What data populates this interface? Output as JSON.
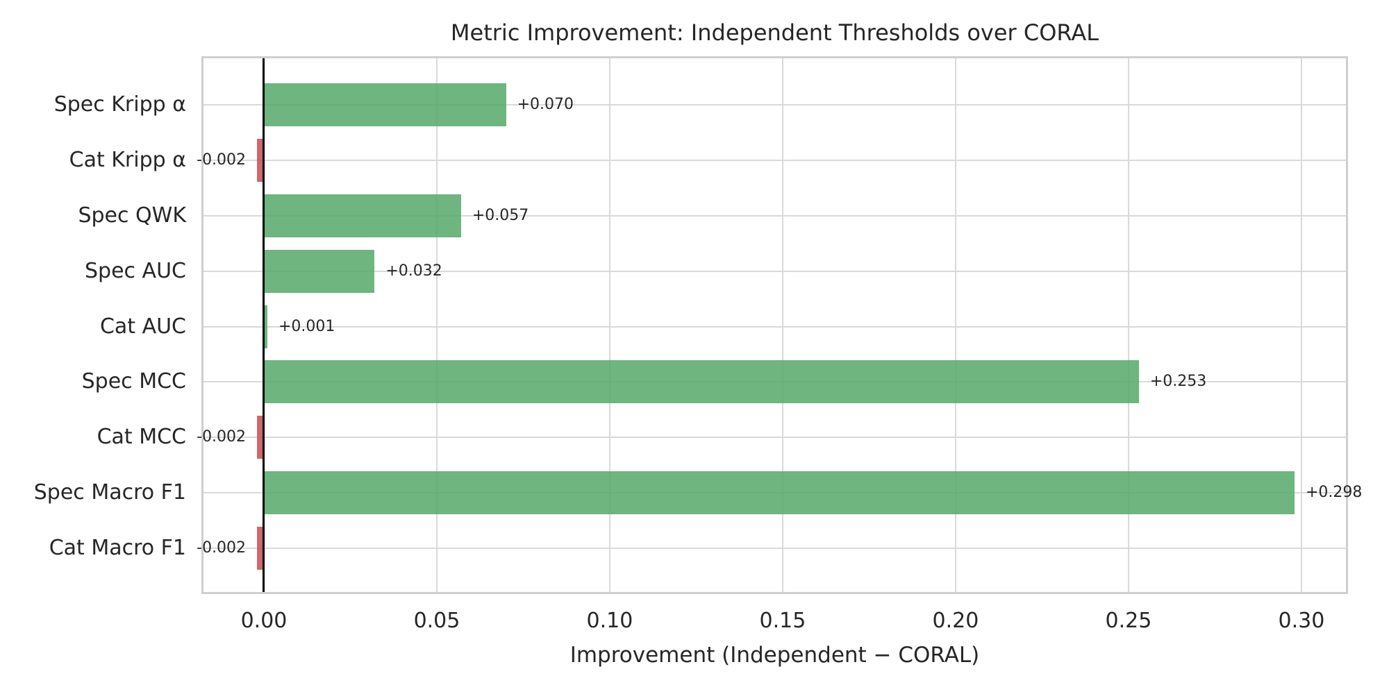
{
  "figure": {
    "title": "Metric Improvement: Independent Thresholds over CORAL",
    "x_axis_label": "Improvement (Independent − CORAL)"
  },
  "chart_data": {
    "type": "bar",
    "orientation": "horizontal",
    "title": "Metric Improvement: Independent Thresholds over CORAL",
    "xlabel": "Improvement (Independent − CORAL)",
    "ylabel": "",
    "categories": [
      "Spec Kripp α",
      "Cat Kripp α",
      "Spec QWK",
      "Spec AUC",
      "Cat AUC",
      "Spec MCC",
      "Cat MCC",
      "Spec Macro F1",
      "Cat Macro F1"
    ],
    "values": [
      0.07,
      -0.002,
      0.057,
      0.032,
      0.001,
      0.253,
      -0.002,
      0.298,
      -0.002
    ],
    "value_labels": [
      "+0.070",
      "-0.002",
      "+0.057",
      "+0.032",
      "+0.001",
      "+0.253",
      "-0.002",
      "+0.298",
      "-0.002"
    ],
    "xlim": [
      -0.01747,
      0.31287
    ],
    "xticks": [
      0.0,
      0.05,
      0.1,
      0.15,
      0.2,
      0.25,
      0.3
    ],
    "xtick_labels": [
      "0.00",
      "0.05",
      "0.10",
      "0.15",
      "0.20",
      "0.25",
      "0.30"
    ],
    "grid": true,
    "legend": false,
    "zero_reference_line": 0,
    "colors": {
      "positive_bar": "#55A868",
      "negative_bar": "#C44E52",
      "bar_alpha": 0.85,
      "grid": "#d9d9d9",
      "spine": "#cfcfcf",
      "zero_line": "#000000",
      "text": "#262626"
    }
  }
}
